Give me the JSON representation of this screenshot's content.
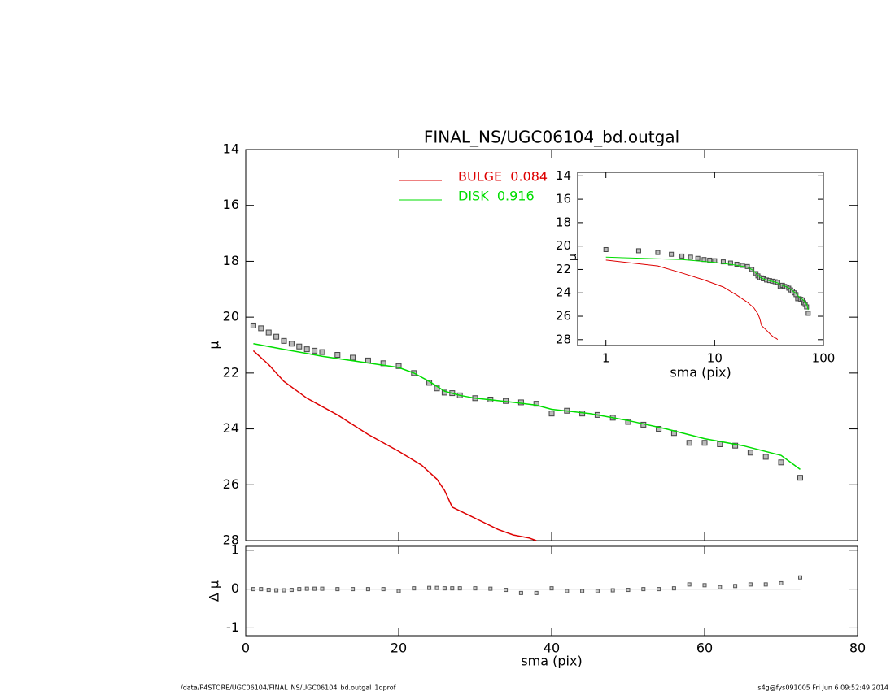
{
  "chart_data": [
    {
      "type": "line",
      "title": "FINAL_NS/UGC06104_bd.outgal",
      "ylabel": "μ",
      "xlim": [
        0,
        80
      ],
      "ylim": [
        14,
        28
      ],
      "y_inverted": true,
      "yticks": [
        14,
        16,
        18,
        20,
        22,
        24,
        26,
        28
      ],
      "series": [
        {
          "color": "#444444",
          "marker": "square",
          "x": [
            1,
            2,
            3,
            4,
            5,
            6,
            7,
            8,
            9,
            10,
            12,
            14,
            16,
            18,
            20,
            22,
            24,
            25,
            26,
            27,
            28,
            30,
            32,
            34,
            36,
            38,
            40,
            42,
            44,
            46,
            48,
            50,
            52,
            54,
            56,
            58,
            60,
            62,
            64,
            66,
            68,
            70,
            72.5
          ],
          "values": [
            20.3,
            20.4,
            20.55,
            20.7,
            20.85,
            20.95,
            21.05,
            21.15,
            21.2,
            21.25,
            21.35,
            21.45,
            21.55,
            21.65,
            21.75,
            22.0,
            22.35,
            22.55,
            22.7,
            22.72,
            22.8,
            22.9,
            22.95,
            23.0,
            23.05,
            23.1,
            23.45,
            23.35,
            23.45,
            23.5,
            23.6,
            23.75,
            23.85,
            24.0,
            24.15,
            24.5,
            24.5,
            24.55,
            24.6,
            24.85,
            25.0,
            25.2,
            25.75
          ]
        },
        {
          "name": "BULGE  0.084",
          "color": "#dd0000",
          "x": [
            1,
            3,
            5,
            8,
            12,
            16,
            20,
            23,
            25,
            26,
            27,
            30,
            33,
            35,
            37,
            38
          ],
          "values": [
            21.2,
            21.7,
            22.3,
            22.9,
            23.5,
            24.2,
            24.8,
            25.3,
            25.8,
            26.2,
            26.8,
            27.2,
            27.6,
            27.8,
            27.9,
            28.0
          ]
        },
        {
          "name": "DISK  0.916",
          "color": "#00dd00",
          "x": [
            1,
            5,
            10,
            15,
            20,
            22,
            24,
            26,
            28,
            30,
            35,
            38,
            40,
            45,
            50,
            55,
            60,
            65,
            70,
            72.5
          ],
          "values": [
            20.95,
            21.15,
            21.4,
            21.6,
            21.8,
            22.0,
            22.3,
            22.65,
            22.8,
            22.9,
            23.05,
            23.15,
            23.3,
            23.45,
            23.7,
            24.0,
            24.35,
            24.6,
            24.95,
            25.45
          ]
        }
      ]
    },
    {
      "type": "scatter",
      "xlabel": "sma (pix)",
      "ylabel": "Δ μ",
      "xlim": [
        0,
        80
      ],
      "ylim": [
        -1.2,
        1.1
      ],
      "xticks": [
        0,
        20,
        40,
        60,
        80
      ],
      "yticks": [
        -1,
        0,
        1
      ],
      "color": "#555555",
      "x": [
        1,
        2,
        3,
        4,
        5,
        6,
        7,
        8,
        9,
        10,
        12,
        14,
        16,
        18,
        20,
        22,
        24,
        25,
        26,
        27,
        28,
        30,
        32,
        34,
        36,
        38,
        40,
        42,
        44,
        46,
        48,
        50,
        52,
        54,
        56,
        58,
        60,
        62,
        64,
        66,
        68,
        70,
        72.5
      ],
      "values": [
        0,
        0,
        -0.02,
        -0.03,
        -0.03,
        -0.02,
        0,
        0.01,
        0.01,
        0.01,
        0,
        0,
        0,
        0,
        -0.05,
        0.02,
        0.03,
        0.03,
        0.02,
        0.02,
        0.02,
        0.02,
        0.01,
        -0.02,
        -0.1,
        -0.1,
        0.02,
        -0.05,
        -0.05,
        -0.05,
        -0.03,
        -0.02,
        0,
        0,
        0.02,
        0.12,
        0.1,
        0.05,
        0.08,
        0.12,
        0.12,
        0.15,
        0.3
      ]
    },
    {
      "type": "inset",
      "xlabel": "sma (pix)",
      "ylabel": "μ",
      "log_x": true,
      "xlim": [
        0.55,
        100
      ],
      "ylim": [
        13.7,
        28.5
      ],
      "y_inverted": true,
      "xticks": [
        1,
        10,
        100
      ],
      "yticks": [
        14,
        16,
        18,
        20,
        22,
        24,
        26,
        28
      ]
    }
  ],
  "footer_left": "/data/P4STORE/UGC06104/FINAL_NS/UGC06104_bd.outgal_1dprof",
  "footer_right": "s4g@fys091005  Fri Jun  6 09:52:49 2014"
}
